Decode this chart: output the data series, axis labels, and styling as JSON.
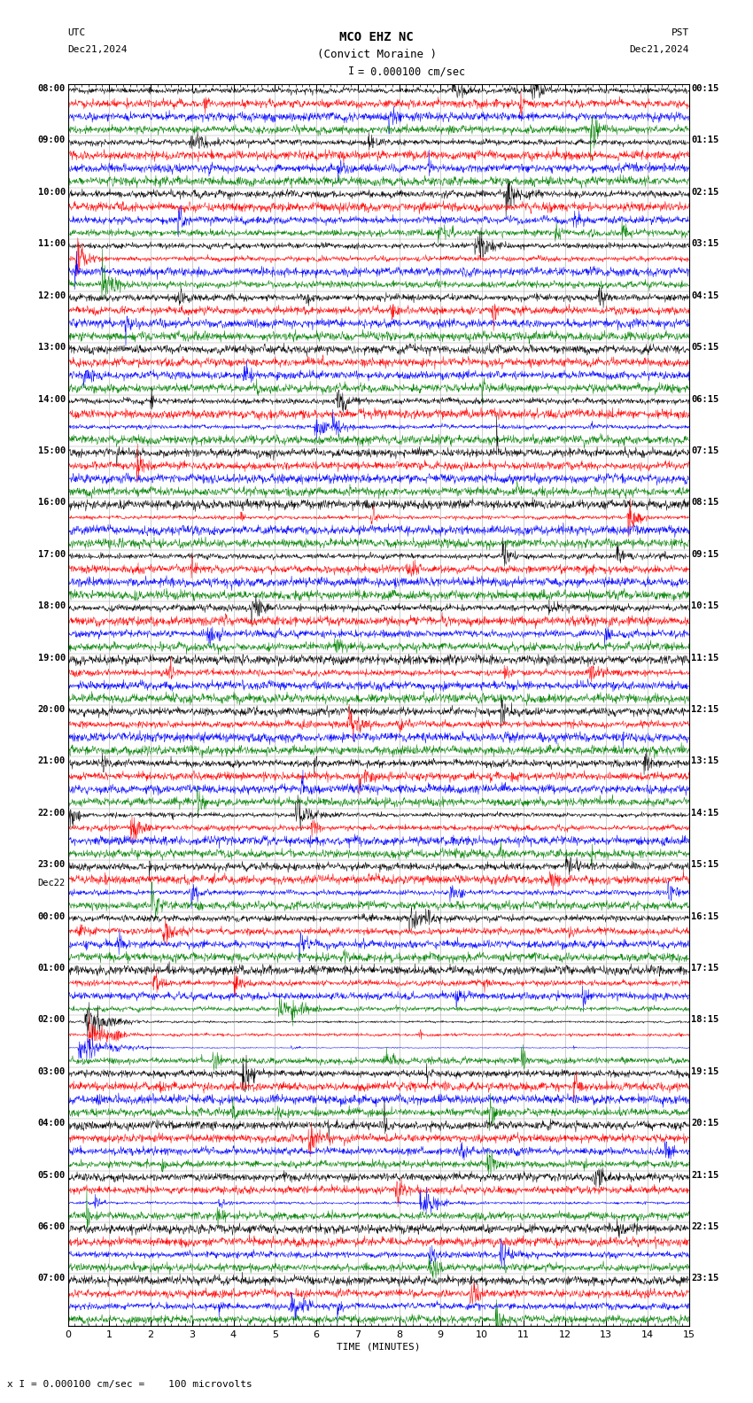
{
  "title_line1": "MCO EHZ NC",
  "title_line2": "(Convict Moraine )",
  "scale_label": "I = 0.000100 cm/sec",
  "bottom_label": "x I = 0.000100 cm/sec =    100 microvolts",
  "utc_label": "UTC",
  "utc_date": "Dec21,2024",
  "pst_label": "PST",
  "pst_date": "Dec21,2024",
  "xlabel": "TIME (MINUTES)",
  "background_color": "#ffffff",
  "trace_colors": [
    "black",
    "red",
    "blue",
    "green"
  ],
  "num_rows": 24,
  "traces_per_row": 4,
  "seed": 12345,
  "grid_color": "#aaaaaa",
  "utc_labels": [
    "08:00",
    "09:00",
    "10:00",
    "11:00",
    "12:00",
    "13:00",
    "14:00",
    "15:00",
    "16:00",
    "17:00",
    "18:00",
    "19:00",
    "20:00",
    "21:00",
    "22:00",
    "23:00",
    "00:00",
    "01:00",
    "02:00",
    "03:00",
    "04:00",
    "05:00",
    "06:00",
    "07:00"
  ],
  "pst_labels": [
    "00:15",
    "01:15",
    "02:15",
    "03:15",
    "04:15",
    "05:15",
    "06:15",
    "07:15",
    "08:15",
    "09:15",
    "10:15",
    "11:15",
    "12:15",
    "13:15",
    "14:15",
    "15:15",
    "16:15",
    "17:15",
    "18:15",
    "19:15",
    "20:15",
    "21:15",
    "22:15",
    "23:15"
  ],
  "day_change_row": 16,
  "day_change_label": "Dec22",
  "font_mono": "monospace",
  "fs_title": 9,
  "fs_label": 8,
  "fs_tick": 7.5
}
